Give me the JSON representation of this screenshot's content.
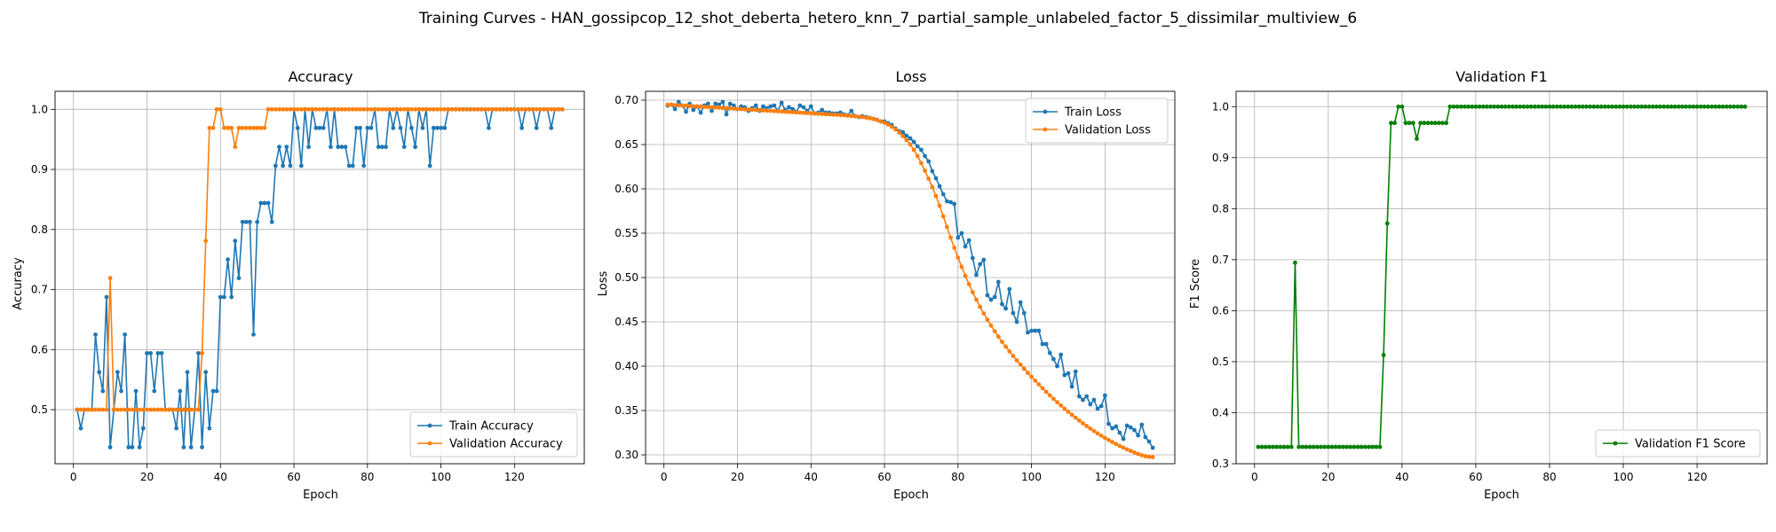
{
  "figure_title": "Training Curves - HAN_gossipcop_12_shot_deberta_hetero_knn_7_partial_sample_unlabeled_factor_5_dissimilar_multiview_6",
  "colors": {
    "blue": "#1f77b4",
    "orange": "#ff7f0e",
    "green": "#008000",
    "grid": "#b0b0b0"
  },
  "chart_data": [
    {
      "type": "line",
      "title": "Accuracy",
      "xlabel": "Epoch",
      "ylabel": "Accuracy",
      "xlim": [
        -5,
        139
      ],
      "ylim": [
        0.41,
        1.03
      ],
      "xticks": [
        0,
        20,
        40,
        60,
        80,
        100,
        120
      ],
      "yticks": [
        0.5,
        0.6,
        0.7,
        0.8,
        0.9,
        1.0
      ],
      "grid": true,
      "legend_position": "lower-right",
      "series": [
        {
          "name": "Train Accuracy",
          "color": "#1f77b4",
          "x_start": 1,
          "values": [
            0.5,
            0.469,
            0.5,
            0.5,
            0.5,
            0.625,
            0.5625,
            0.531,
            0.6875,
            0.4375,
            0.5,
            0.5625,
            0.531,
            0.625,
            0.4375,
            0.4375,
            0.531,
            0.4375,
            0.469,
            0.594,
            0.594,
            0.531,
            0.594,
            0.594,
            0.5,
            0.5,
            0.5,
            0.469,
            0.531,
            0.4375,
            0.5625,
            0.4375,
            0.5,
            0.594,
            0.4375,
            0.5625,
            0.469,
            0.531,
            0.531,
            0.6875,
            0.6875,
            0.75,
            0.6875,
            0.781,
            0.719,
            0.8125,
            0.8125,
            0.8125,
            0.625,
            0.8125,
            0.844,
            0.844,
            0.844,
            0.8125,
            0.906,
            0.9375,
            0.906,
            0.9375,
            0.906,
            1.0,
            0.969,
            0.906,
            1.0,
            0.9375,
            1.0,
            0.969,
            0.969,
            0.969,
            1.0,
            0.9375,
            1.0,
            0.9375,
            0.9375,
            0.9375,
            0.906,
            0.906,
            0.969,
            0.969,
            0.906,
            0.969,
            0.969,
            1.0,
            0.9375,
            0.9375,
            0.9375,
            1.0,
            0.969,
            1.0,
            0.969,
            0.9375,
            1.0,
            0.969,
            0.9375,
            1.0,
            0.969,
            1.0,
            0.906,
            0.969,
            0.969,
            0.969,
            0.969,
            1.0,
            1.0,
            1.0,
            1.0,
            1.0,
            1.0,
            1.0,
            1.0,
            1.0,
            1.0,
            1.0,
            0.969,
            1.0,
            1.0,
            1.0,
            1.0,
            1.0,
            1.0,
            1.0,
            1.0,
            0.969,
            1.0,
            1.0,
            1.0,
            0.969,
            1.0,
            1.0,
            1.0,
            0.969,
            1.0,
            1.0,
            1.0
          ]
        },
        {
          "name": "Validation Accuracy",
          "color": "#ff7f0e",
          "x_start": 1,
          "values": [
            0.5,
            0.5,
            0.5,
            0.5,
            0.5,
            0.5,
            0.5,
            0.5,
            0.5,
            0.719,
            0.5,
            0.5,
            0.5,
            0.5,
            0.5,
            0.5,
            0.5,
            0.5,
            0.5,
            0.5,
            0.5,
            0.5,
            0.5,
            0.5,
            0.5,
            0.5,
            0.5,
            0.5,
            0.5,
            0.5,
            0.5,
            0.5,
            0.5,
            0.5,
            0.594,
            0.781,
            0.969,
            0.969,
            1.0,
            1.0,
            0.969,
            0.969,
            0.969,
            0.9375,
            0.969,
            0.969,
            0.969,
            0.969,
            0.969,
            0.969,
            0.969,
            0.969,
            1.0,
            1.0,
            1.0,
            1.0,
            1.0,
            1.0,
            1.0,
            1.0,
            1.0,
            1.0,
            1.0,
            1.0,
            1.0,
            1.0,
            1.0,
            1.0,
            1.0,
            1.0,
            1.0,
            1.0,
            1.0,
            1.0,
            1.0,
            1.0,
            1.0,
            1.0,
            1.0,
            1.0,
            1.0,
            1.0,
            1.0,
            1.0,
            1.0,
            1.0,
            1.0,
            1.0,
            1.0,
            1.0,
            1.0,
            1.0,
            1.0,
            1.0,
            1.0,
            1.0,
            1.0,
            1.0,
            1.0,
            1.0,
            1.0,
            1.0,
            1.0,
            1.0,
            1.0,
            1.0,
            1.0,
            1.0,
            1.0,
            1.0,
            1.0,
            1.0,
            1.0,
            1.0,
            1.0,
            1.0,
            1.0,
            1.0,
            1.0,
            1.0,
            1.0,
            1.0,
            1.0,
            1.0,
            1.0,
            1.0,
            1.0,
            1.0,
            1.0,
            1.0,
            1.0,
            1.0,
            1.0
          ]
        }
      ]
    },
    {
      "type": "line",
      "title": "Loss",
      "xlabel": "Epoch",
      "ylabel": "Loss",
      "xlim": [
        -5,
        139
      ],
      "ylim": [
        0.29,
        0.71
      ],
      "xticks": [
        0,
        20,
        40,
        60,
        80,
        100,
        120
      ],
      "yticks": [
        0.3,
        0.35,
        0.4,
        0.45,
        0.5,
        0.55,
        0.6,
        0.65,
        0.7
      ],
      "grid": true,
      "legend_position": "upper-right",
      "series": [
        {
          "name": "Train Loss",
          "color": "#1f77b4",
          "x_start": 1,
          "values": [
            0.694,
            0.695,
            0.69,
            0.698,
            0.694,
            0.687,
            0.696,
            0.689,
            0.693,
            0.686,
            0.694,
            0.696,
            0.688,
            0.696,
            0.695,
            0.698,
            0.684,
            0.696,
            0.694,
            0.69,
            0.693,
            0.692,
            0.688,
            0.691,
            0.694,
            0.688,
            0.693,
            0.691,
            0.693,
            0.694,
            0.688,
            0.697,
            0.689,
            0.692,
            0.69,
            0.687,
            0.694,
            0.692,
            0.688,
            0.693,
            0.685,
            0.686,
            0.689,
            0.686,
            0.686,
            0.685,
            0.685,
            0.686,
            0.684,
            0.683,
            0.688,
            0.682,
            0.681,
            0.682,
            0.681,
            0.68,
            0.679,
            0.678,
            0.676,
            0.676,
            0.674,
            0.672,
            0.668,
            0.665,
            0.664,
            0.66,
            0.657,
            0.653,
            0.648,
            0.644,
            0.637,
            0.631,
            0.62,
            0.612,
            0.603,
            0.594,
            0.586,
            0.585,
            0.583,
            0.545,
            0.55,
            0.535,
            0.542,
            0.522,
            0.503,
            0.515,
            0.52,
            0.48,
            0.475,
            0.478,
            0.495,
            0.47,
            0.465,
            0.487,
            0.46,
            0.45,
            0.472,
            0.46,
            0.438,
            0.44,
            0.44,
            0.44,
            0.425,
            0.425,
            0.415,
            0.408,
            0.4,
            0.413,
            0.39,
            0.392,
            0.377,
            0.394,
            0.366,
            0.362,
            0.366,
            0.357,
            0.362,
            0.352,
            0.355,
            0.367,
            0.335,
            0.33,
            0.332,
            0.325,
            0.318,
            0.333,
            0.331,
            0.328,
            0.322,
            0.334,
            0.32,
            0.315,
            0.308
          ]
        },
        {
          "name": "Validation Loss",
          "color": "#ff7f0e",
          "x_start": 1,
          "values": [
            0.695,
            0.6948,
            0.6945,
            0.6942,
            0.694,
            0.6938,
            0.6935,
            0.6932,
            0.693,
            0.6928,
            0.6925,
            0.6922,
            0.692,
            0.6918,
            0.6915,
            0.6912,
            0.691,
            0.6908,
            0.6905,
            0.6902,
            0.69,
            0.6897,
            0.6895,
            0.6892,
            0.689,
            0.6887,
            0.6885,
            0.6882,
            0.688,
            0.6877,
            0.6875,
            0.6872,
            0.687,
            0.6867,
            0.6865,
            0.6862,
            0.686,
            0.6857,
            0.6855,
            0.6852,
            0.685,
            0.6847,
            0.6845,
            0.6842,
            0.684,
            0.6837,
            0.6835,
            0.6832,
            0.683,
            0.6826,
            0.6822,
            0.6818,
            0.6814,
            0.681,
            0.6803,
            0.6796,
            0.6787,
            0.6776,
            0.6762,
            0.6745,
            0.6725,
            0.67,
            0.667,
            0.6635,
            0.6595,
            0.655,
            0.65,
            0.644,
            0.637,
            0.629,
            0.6205,
            0.6115,
            0.602,
            0.592,
            0.581,
            0.569,
            0.557,
            0.545,
            0.5335,
            0.5225,
            0.512,
            0.502,
            0.4925,
            0.4835,
            0.475,
            0.467,
            0.4595,
            0.4525,
            0.4458,
            0.4394,
            0.4333,
            0.4275,
            0.422,
            0.4167,
            0.4116,
            0.4066,
            0.4018,
            0.3971,
            0.3925,
            0.388,
            0.3837,
            0.3794,
            0.3752,
            0.3711,
            0.3671,
            0.3632,
            0.3594,
            0.3557,
            0.3521,
            0.3486,
            0.3452,
            0.3419,
            0.3387,
            0.3356,
            0.3326,
            0.3297,
            0.3269,
            0.3242,
            0.3216,
            0.3191,
            0.3167,
            0.3144,
            0.3122,
            0.3101,
            0.3081,
            0.3062,
            0.3044,
            0.3027,
            0.3011,
            0.2996,
            0.2985,
            0.2978,
            0.2975
          ]
        }
      ]
    },
    {
      "type": "line",
      "title": "Validation F1",
      "xlabel": "Epoch",
      "ylabel": "F1 Score",
      "xlim": [
        -5,
        139
      ],
      "ylim": [
        0.3,
        1.03
      ],
      "xticks": [
        0,
        20,
        40,
        60,
        80,
        100,
        120
      ],
      "yticks": [
        0.3,
        0.4,
        0.5,
        0.6,
        0.7,
        0.8,
        0.9,
        1.0
      ],
      "grid": true,
      "legend_position": "lower-right",
      "series": [
        {
          "name": "Validation F1 Score",
          "color": "#008000",
          "x_start": 1,
          "values": [
            0.333,
            0.333,
            0.333,
            0.333,
            0.333,
            0.333,
            0.333,
            0.333,
            0.333,
            0.333,
            0.694,
            0.333,
            0.333,
            0.333,
            0.333,
            0.333,
            0.333,
            0.333,
            0.333,
            0.333,
            0.333,
            0.333,
            0.333,
            0.333,
            0.333,
            0.333,
            0.333,
            0.333,
            0.333,
            0.333,
            0.333,
            0.333,
            0.333,
            0.333,
            0.513,
            0.771,
            0.968,
            0.968,
            1.0,
            1.0,
            0.968,
            0.968,
            0.968,
            0.937,
            0.968,
            0.968,
            0.968,
            0.968,
            0.968,
            0.968,
            0.968,
            0.968,
            1.0,
            1.0,
            1.0,
            1.0,
            1.0,
            1.0,
            1.0,
            1.0,
            1.0,
            1.0,
            1.0,
            1.0,
            1.0,
            1.0,
            1.0,
            1.0,
            1.0,
            1.0,
            1.0,
            1.0,
            1.0,
            1.0,
            1.0,
            1.0,
            1.0,
            1.0,
            1.0,
            1.0,
            1.0,
            1.0,
            1.0,
            1.0,
            1.0,
            1.0,
            1.0,
            1.0,
            1.0,
            1.0,
            1.0,
            1.0,
            1.0,
            1.0,
            1.0,
            1.0,
            1.0,
            1.0,
            1.0,
            1.0,
            1.0,
            1.0,
            1.0,
            1.0,
            1.0,
            1.0,
            1.0,
            1.0,
            1.0,
            1.0,
            1.0,
            1.0,
            1.0,
            1.0,
            1.0,
            1.0,
            1.0,
            1.0,
            1.0,
            1.0,
            1.0,
            1.0,
            1.0,
            1.0,
            1.0,
            1.0,
            1.0,
            1.0,
            1.0,
            1.0,
            1.0,
            1.0,
            1.0
          ]
        }
      ]
    }
  ]
}
